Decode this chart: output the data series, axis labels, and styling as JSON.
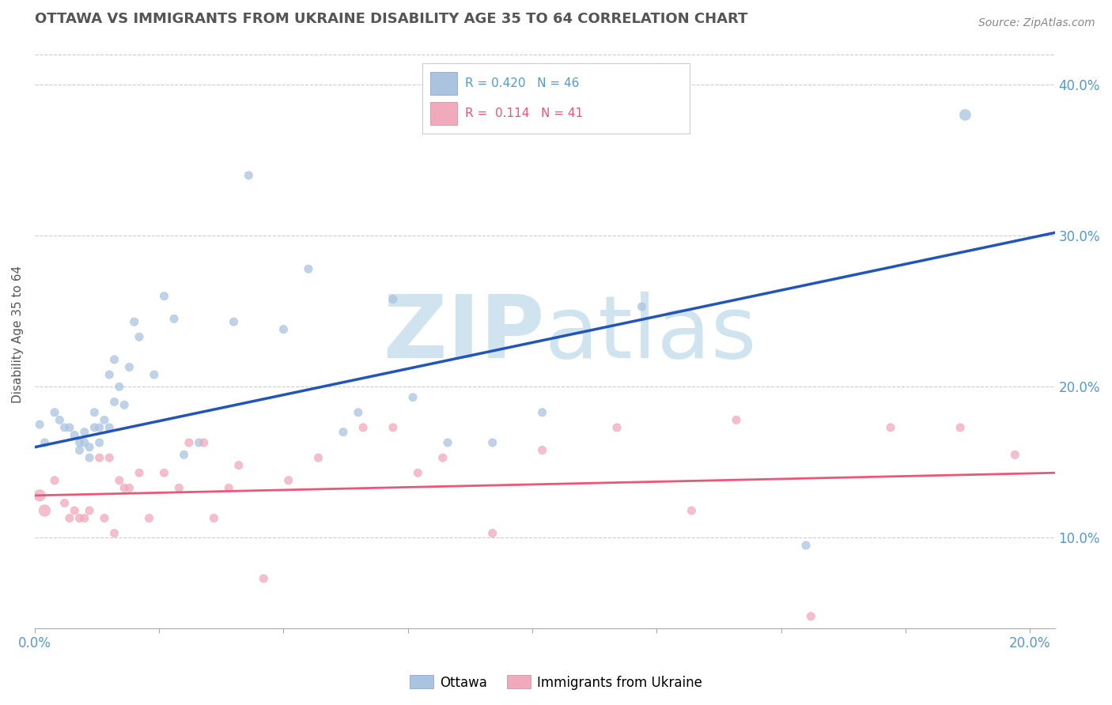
{
  "title": "OTTAWA VS IMMIGRANTS FROM UKRAINE DISABILITY AGE 35 TO 64 CORRELATION CHART",
  "source": "Source: ZipAtlas.com",
  "ylabel": "Disability Age 35 to 64",
  "xlim": [
    0.0,
    0.205
  ],
  "ylim": [
    0.04,
    0.43
  ],
  "xticks": [
    0.0,
    0.025,
    0.05,
    0.075,
    0.1,
    0.125,
    0.15,
    0.175,
    0.2
  ],
  "yticks_right": [
    0.1,
    0.2,
    0.3,
    0.4
  ],
  "ytick_labels_right": [
    "10.0%",
    "20.0%",
    "30.0%",
    "40.0%"
  ],
  "legend_r_blue": "R = 0.420",
  "legend_n_blue": "N = 46",
  "legend_r_pink": "R =  0.114",
  "legend_n_pink": "N = 41",
  "blue_color": "#AAC4E0",
  "pink_color": "#F0AABB",
  "blue_line_color": "#2255BB",
  "pink_line_color": "#EE5577",
  "watermark_color": "#D0E4F0",
  "blue_scatter_x": [
    0.001,
    0.002,
    0.004,
    0.005,
    0.006,
    0.007,
    0.008,
    0.009,
    0.009,
    0.01,
    0.01,
    0.011,
    0.011,
    0.012,
    0.012,
    0.013,
    0.013,
    0.014,
    0.015,
    0.015,
    0.016,
    0.016,
    0.017,
    0.018,
    0.019,
    0.02,
    0.021,
    0.024,
    0.026,
    0.028,
    0.03,
    0.033,
    0.04,
    0.043,
    0.05,
    0.055,
    0.062,
    0.065,
    0.072,
    0.076,
    0.083,
    0.092,
    0.102,
    0.122,
    0.155,
    0.187
  ],
  "blue_scatter_y": [
    0.175,
    0.163,
    0.183,
    0.178,
    0.173,
    0.173,
    0.168,
    0.163,
    0.158,
    0.17,
    0.163,
    0.16,
    0.153,
    0.183,
    0.173,
    0.173,
    0.163,
    0.178,
    0.173,
    0.208,
    0.218,
    0.19,
    0.2,
    0.188,
    0.213,
    0.243,
    0.233,
    0.208,
    0.26,
    0.245,
    0.155,
    0.163,
    0.243,
    0.34,
    0.238,
    0.278,
    0.17,
    0.183,
    0.258,
    0.193,
    0.163,
    0.163,
    0.183,
    0.253,
    0.095,
    0.38
  ],
  "blue_scatter_size": [
    55,
    55,
    55,
    55,
    55,
    55,
    55,
    55,
    55,
    55,
    55,
    55,
    55,
    55,
    55,
    55,
    55,
    55,
    55,
    55,
    55,
    55,
    55,
    55,
    55,
    55,
    55,
    55,
    55,
    55,
    55,
    55,
    55,
    55,
    55,
    55,
    55,
    55,
    55,
    55,
    55,
    55,
    55,
    55,
    55,
    100
  ],
  "pink_scatter_x": [
    0.001,
    0.002,
    0.004,
    0.006,
    0.007,
    0.008,
    0.009,
    0.01,
    0.011,
    0.013,
    0.014,
    0.015,
    0.016,
    0.017,
    0.018,
    0.019,
    0.021,
    0.023,
    0.026,
    0.029,
    0.031,
    0.034,
    0.036,
    0.039,
    0.041,
    0.046,
    0.051,
    0.057,
    0.066,
    0.072,
    0.077,
    0.082,
    0.092,
    0.102,
    0.117,
    0.132,
    0.141,
    0.156,
    0.172,
    0.186,
    0.197
  ],
  "pink_scatter_y": [
    0.128,
    0.118,
    0.138,
    0.123,
    0.113,
    0.118,
    0.113,
    0.113,
    0.118,
    0.153,
    0.113,
    0.153,
    0.103,
    0.138,
    0.133,
    0.133,
    0.143,
    0.113,
    0.143,
    0.133,
    0.163,
    0.163,
    0.113,
    0.133,
    0.148,
    0.073,
    0.138,
    0.153,
    0.173,
    0.173,
    0.143,
    0.153,
    0.103,
    0.158,
    0.173,
    0.118,
    0.178,
    0.048,
    0.173,
    0.173,
    0.155
  ],
  "pink_scatter_size": [
    110,
    110,
    55,
    55,
    55,
    55,
    55,
    55,
    55,
    55,
    55,
    55,
    55,
    55,
    55,
    55,
    55,
    55,
    55,
    55,
    55,
    55,
    55,
    55,
    55,
    55,
    55,
    55,
    55,
    55,
    55,
    55,
    55,
    55,
    55,
    55,
    55,
    55,
    55,
    55,
    55
  ],
  "blue_line_x": [
    0.0,
    0.205
  ],
  "blue_line_y": [
    0.16,
    0.302
  ],
  "pink_line_x": [
    0.0,
    0.205
  ],
  "pink_line_y": [
    0.128,
    0.143
  ],
  "grid_color": "#CCCCCC",
  "background_color": "#FFFFFF",
  "title_color": "#555555",
  "axis_color": "#5599CC"
}
